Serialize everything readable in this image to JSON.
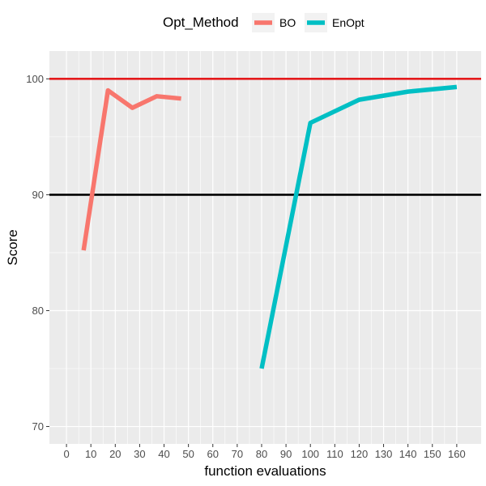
{
  "chart_data": {
    "type": "line",
    "title": "",
    "xlabel": "function evaluations",
    "ylabel": "Score",
    "xlim": [
      -7,
      170
    ],
    "ylim": [
      68.5,
      102.4
    ],
    "x_ticks": [
      0,
      10,
      20,
      30,
      40,
      50,
      60,
      70,
      80,
      90,
      100,
      110,
      120,
      130,
      140,
      150,
      160
    ],
    "x_tick_labels": [
      "0",
      "10",
      "20",
      "30",
      "40",
      "50",
      "60",
      "70",
      "80",
      "90",
      "100",
      "110",
      "120",
      "130",
      "140",
      "150",
      "160"
    ],
    "y_ticks": [
      70,
      80,
      90,
      100
    ],
    "y_tick_labels": [
      "70",
      "80",
      "90",
      "100"
    ],
    "grid": true,
    "legend": {
      "title": "Opt_Method",
      "position": "top",
      "entries": [
        "BO",
        "EnOpt"
      ]
    },
    "series": [
      {
        "name": "BO",
        "color": "#F8766D",
        "x": [
          7,
          17,
          27,
          37,
          47
        ],
        "y": [
          85.2,
          99.0,
          97.5,
          98.5,
          98.3
        ]
      },
      {
        "name": "EnOpt",
        "color": "#00BFC4",
        "x": [
          80,
          100,
          120,
          140,
          160
        ],
        "y": [
          75.0,
          96.2,
          98.2,
          98.9,
          99.3
        ]
      }
    ],
    "reference_lines": [
      {
        "y": 100,
        "color": "#E41A1C"
      },
      {
        "y": 90,
        "color": "#000000"
      }
    ]
  }
}
